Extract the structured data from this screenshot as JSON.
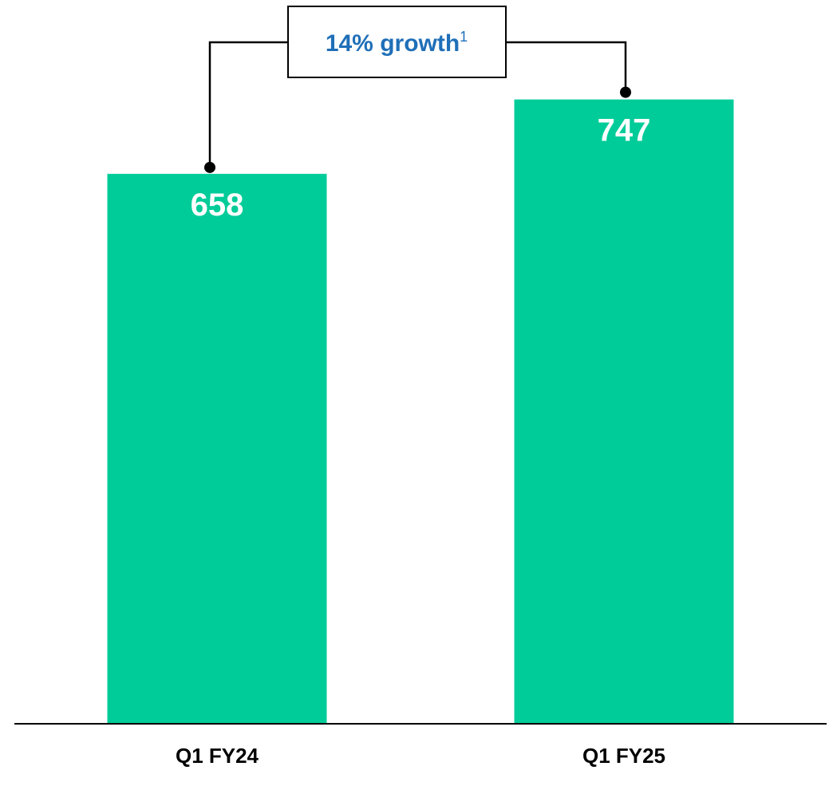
{
  "colors": {
    "bar": "#00CC99",
    "accent": "#1F6FB8",
    "line": "#000000"
  },
  "chart_data": {
    "type": "bar",
    "categories": [
      "Q1 FY24",
      "Q1 FY25"
    ],
    "values": [
      658,
      747
    ],
    "value_labels": [
      "658",
      "747"
    ],
    "ylim": [
      0,
      866
    ],
    "title": "",
    "xlabel": "",
    "ylabel": "",
    "grid": false,
    "annotation": {
      "text": "14% growth",
      "footnote_marker": "1",
      "from_category": "Q1 FY24",
      "to_category": "Q1 FY25"
    }
  }
}
